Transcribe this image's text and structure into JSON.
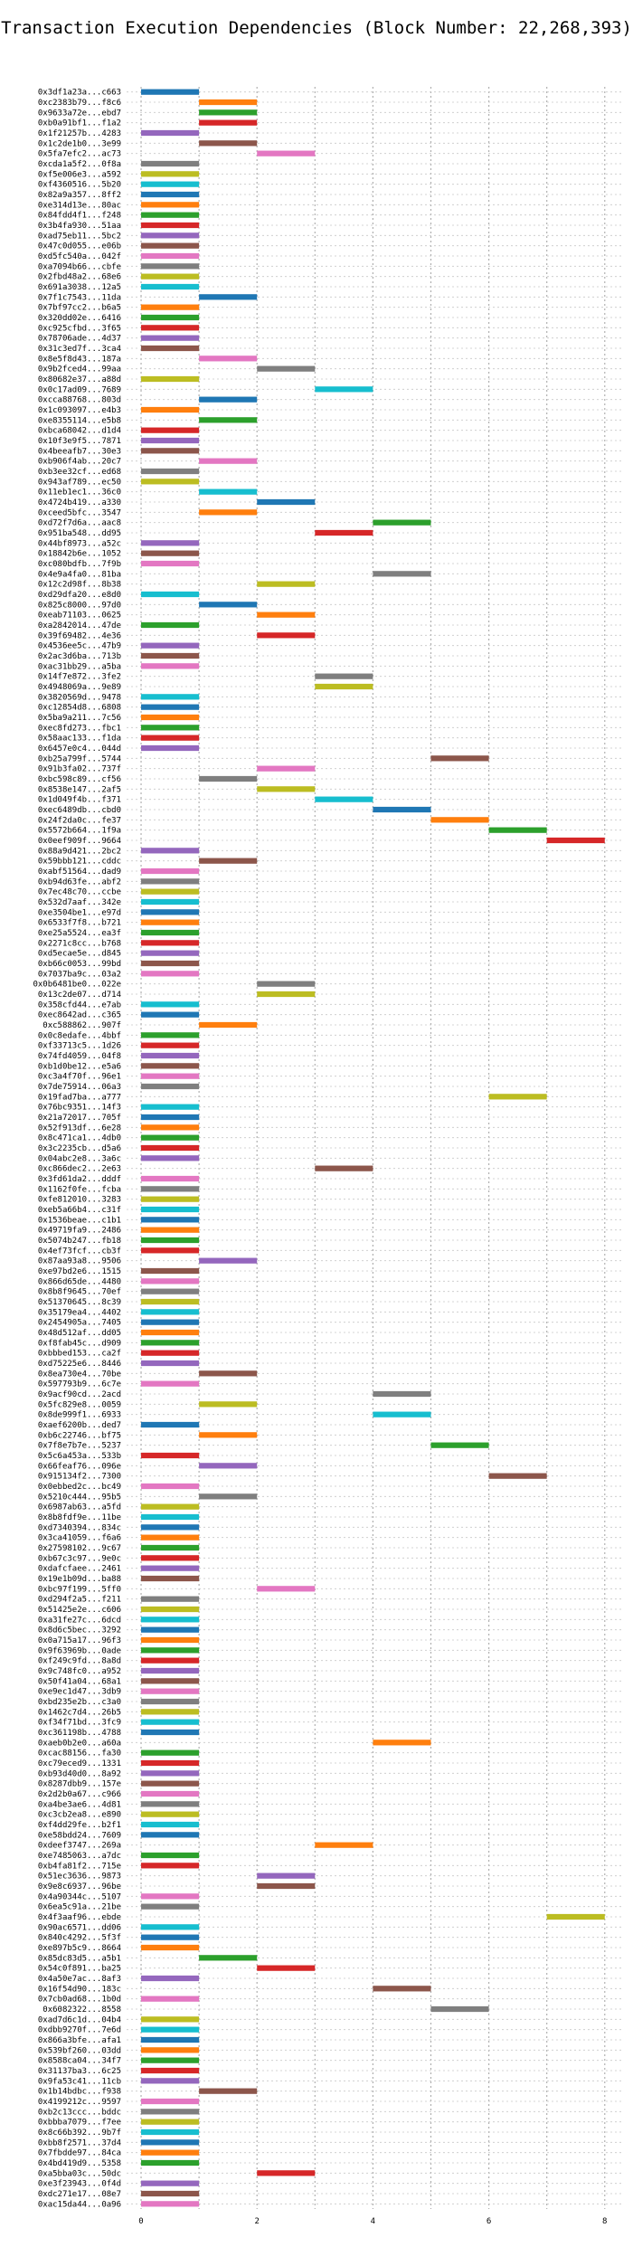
{
  "chart_data": {
    "type": "bar",
    "title": "Transaction Execution Dependencies (Block Number: 22,268,393)",
    "xlabel": "",
    "ylabel": "",
    "xlim": [
      -0.25,
      8.3
    ],
    "x_ticks": [
      0,
      2,
      4,
      6,
      8
    ],
    "grid": true,
    "palette": [
      "#1f77b4",
      "#ff7f0e",
      "#2ca02c",
      "#d62728",
      "#9467bd",
      "#8c564b",
      "#e377c2",
      "#7f7f7f",
      "#bcbd22",
      "#17becf"
    ],
    "transactions": [
      {
        "hash": "0x3df1a23a...c663",
        "start": 0,
        "end": 1
      },
      {
        "hash": "0xc2383b79...f8c6",
        "start": 1,
        "end": 2
      },
      {
        "hash": "0x9633a72e...ebd7",
        "start": 1,
        "end": 2
      },
      {
        "hash": "0xb0a91bf1...f1a2",
        "start": 1,
        "end": 2
      },
      {
        "hash": "0x1f21257b...4283",
        "start": 0,
        "end": 1
      },
      {
        "hash": "0x1c2de1b0...3e99",
        "start": 1,
        "end": 2
      },
      {
        "hash": "0x5fa7efc2...ac73",
        "start": 2,
        "end": 3
      },
      {
        "hash": "0xcda1a5f2...0f8a",
        "start": 0,
        "end": 1
      },
      {
        "hash": "0xf5e006e3...a592",
        "start": 0,
        "end": 1
      },
      {
        "hash": "0xf4360516...5b20",
        "start": 0,
        "end": 1
      },
      {
        "hash": "0x82a9a357...8ff2",
        "start": 0,
        "end": 1
      },
      {
        "hash": "0xe314d13e...80ac",
        "start": 0,
        "end": 1
      },
      {
        "hash": "0x84fdd4f1...f248",
        "start": 0,
        "end": 1
      },
      {
        "hash": "0x3b4fa930...51aa",
        "start": 0,
        "end": 1
      },
      {
        "hash": "0xad75eb11...5bc2",
        "start": 0,
        "end": 1
      },
      {
        "hash": "0x47c0d055...e06b",
        "start": 0,
        "end": 1
      },
      {
        "hash": "0xd5fc540a...042f",
        "start": 0,
        "end": 1
      },
      {
        "hash": "0xa7094b66...cbfe",
        "start": 0,
        "end": 1
      },
      {
        "hash": "0x2fbd48a2...68e6",
        "start": 0,
        "end": 1
      },
      {
        "hash": "0x691a3038...12a5",
        "start": 0,
        "end": 1
      },
      {
        "hash": "0x7f1c7543...11da",
        "start": 1,
        "end": 2
      },
      {
        "hash": "0x7bf97cc2...b6a5",
        "start": 0,
        "end": 1
      },
      {
        "hash": "0x320dd02e...6416",
        "start": 0,
        "end": 1
      },
      {
        "hash": "0xc925cfbd...3f65",
        "start": 0,
        "end": 1
      },
      {
        "hash": "0x78706ade...4d37",
        "start": 0,
        "end": 1
      },
      {
        "hash": "0x31c3ed7f...3ca4",
        "start": 0,
        "end": 1
      },
      {
        "hash": "0x8e5f8d43...187a",
        "start": 1,
        "end": 2
      },
      {
        "hash": "0x9b2fced4...99aa",
        "start": 2,
        "end": 3
      },
      {
        "hash": "0x80682e37...a88d",
        "start": 0,
        "end": 1
      },
      {
        "hash": "0x0c17ad09...7689",
        "start": 3,
        "end": 4
      },
      {
        "hash": "0xcca88768...803d",
        "start": 1,
        "end": 2
      },
      {
        "hash": "0x1c093097...e4b3",
        "start": 0,
        "end": 1
      },
      {
        "hash": "0xe8355114...e5b8",
        "start": 1,
        "end": 2
      },
      {
        "hash": "0xbca68042...d1d4",
        "start": 0,
        "end": 1
      },
      {
        "hash": "0x10f3e9f5...7871",
        "start": 0,
        "end": 1
      },
      {
        "hash": "0x4beeafb7...30e3",
        "start": 0,
        "end": 1
      },
      {
        "hash": "0xb906f4ab...20c7",
        "start": 1,
        "end": 2
      },
      {
        "hash": "0xb3ee32cf...ed68",
        "start": 0,
        "end": 1
      },
      {
        "hash": "0x943af789...ec50",
        "start": 0,
        "end": 1
      },
      {
        "hash": "0x11eb1ec1...36c0",
        "start": 1,
        "end": 2
      },
      {
        "hash": "0x4724b419...a330",
        "start": 2,
        "end": 3
      },
      {
        "hash": "0xceed5bfc...3547",
        "start": 1,
        "end": 2
      },
      {
        "hash": "0xd72f7d6a...aac8",
        "start": 4,
        "end": 5
      },
      {
        "hash": "0x951ba548...dd95",
        "start": 3,
        "end": 4
      },
      {
        "hash": "0x44bf8973...a52c",
        "start": 0,
        "end": 1
      },
      {
        "hash": "0x18842b6e...1052",
        "start": 0,
        "end": 1
      },
      {
        "hash": "0xc080bdfb...7f9b",
        "start": 0,
        "end": 1
      },
      {
        "hash": "0x4e9a4fa0...81ba",
        "start": 4,
        "end": 5
      },
      {
        "hash": "0x12c2d98f...8b38",
        "start": 2,
        "end": 3
      },
      {
        "hash": "0xd29dfa20...e8d0",
        "start": 0,
        "end": 1
      },
      {
        "hash": "0x825c8000...97d0",
        "start": 1,
        "end": 2
      },
      {
        "hash": "0xeab71103...0625",
        "start": 2,
        "end": 3
      },
      {
        "hash": "0xa2842014...47de",
        "start": 0,
        "end": 1
      },
      {
        "hash": "0x39f69482...4e36",
        "start": 2,
        "end": 3
      },
      {
        "hash": "0x4536ee5c...47b9",
        "start": 0,
        "end": 1
      },
      {
        "hash": "0x2ac3d6ba...713b",
        "start": 0,
        "end": 1
      },
      {
        "hash": "0xac31bb29...a5ba",
        "start": 0,
        "end": 1
      },
      {
        "hash": "0x14f7e872...3fe2",
        "start": 3,
        "end": 4
      },
      {
        "hash": "0x4948069a...9e89",
        "start": 3,
        "end": 4
      },
      {
        "hash": "0x3820569d...9478",
        "start": 0,
        "end": 1
      },
      {
        "hash": "0xc12854d8...6808",
        "start": 0,
        "end": 1
      },
      {
        "hash": "0x5ba9a211...7c56",
        "start": 0,
        "end": 1
      },
      {
        "hash": "0xec8fd273...fbc1",
        "start": 0,
        "end": 1
      },
      {
        "hash": "0x58aac133...f1da",
        "start": 0,
        "end": 1
      },
      {
        "hash": "0x6457e0c4...044d",
        "start": 0,
        "end": 1
      },
      {
        "hash": "0xb25a799f...5744",
        "start": 5,
        "end": 6
      },
      {
        "hash": "0x91b3fa02...737f",
        "start": 2,
        "end": 3
      },
      {
        "hash": "0xbc598c89...cf56",
        "start": 1,
        "end": 2
      },
      {
        "hash": "0x8538e147...2af5",
        "start": 2,
        "end": 3
      },
      {
        "hash": "0x1d049f4b...f371",
        "start": 3,
        "end": 4
      },
      {
        "hash": "0xec6489db...cbd0",
        "start": 4,
        "end": 5
      },
      {
        "hash": "0x24f2da0c...fe37",
        "start": 5,
        "end": 6
      },
      {
        "hash": "0x5572b664...1f9a",
        "start": 6,
        "end": 7
      },
      {
        "hash": "0x0eef909f...9664",
        "start": 7,
        "end": 8
      },
      {
        "hash": "0x88a9d421...2bc2",
        "start": 0,
        "end": 1
      },
      {
        "hash": "0x59bbb121...cddc",
        "start": 1,
        "end": 2
      },
      {
        "hash": "0xabf51564...dad9",
        "start": 0,
        "end": 1
      },
      {
        "hash": "0xb94d63fe...abf2",
        "start": 0,
        "end": 1
      },
      {
        "hash": "0x7ec48c70...ccbe",
        "start": 0,
        "end": 1
      },
      {
        "hash": "0x532d7aaf...342e",
        "start": 0,
        "end": 1
      },
      {
        "hash": "0xe3504be1...e97d",
        "start": 0,
        "end": 1
      },
      {
        "hash": "0x6533f7f8...b721",
        "start": 0,
        "end": 1
      },
      {
        "hash": "0xe25a5524...ea3f",
        "start": 0,
        "end": 1
      },
      {
        "hash": "0x2271c8cc...b768",
        "start": 0,
        "end": 1
      },
      {
        "hash": "0xd5ecae5e...d845",
        "start": 0,
        "end": 1
      },
      {
        "hash": "0xb66c0053...99bd",
        "start": 0,
        "end": 1
      },
      {
        "hash": "0x7037ba9c...03a2",
        "start": 0,
        "end": 1
      },
      {
        "hash": "0x0b6481be0...022e",
        "start": 2,
        "end": 3
      },
      {
        "hash": "0x13c2de07...d714",
        "start": 2,
        "end": 3
      },
      {
        "hash": "0x358cfd44...e7ab",
        "start": 0,
        "end": 1
      },
      {
        "hash": "0xec8642ad...c365",
        "start": 0,
        "end": 1
      },
      {
        "hash": "0xc588862...907f",
        "start": 1,
        "end": 2
      },
      {
        "hash": "0x0c8edafe...4bbf",
        "start": 0,
        "end": 1
      },
      {
        "hash": "0xf33713c5...1d26",
        "start": 0,
        "end": 1
      },
      {
        "hash": "0x74fd4059...04f8",
        "start": 0,
        "end": 1
      },
      {
        "hash": "0xb1d0be12...e5a6",
        "start": 0,
        "end": 1
      },
      {
        "hash": "0xc3a4f70f...96e1",
        "start": 0,
        "end": 1
      },
      {
        "hash": "0x7de75914...06a3",
        "start": 0,
        "end": 1
      },
      {
        "hash": "0x19fad7ba...a777",
        "start": 6,
        "end": 7
      },
      {
        "hash": "0x76bc9351...14f3",
        "start": 0,
        "end": 1
      },
      {
        "hash": "0x21a72017...705f",
        "start": 0,
        "end": 1
      },
      {
        "hash": "0x52f913df...6e28",
        "start": 0,
        "end": 1
      },
      {
        "hash": "0x8c471ca1...4db0",
        "start": 0,
        "end": 1
      },
      {
        "hash": "0x3c2235cb...d5a6",
        "start": 0,
        "end": 1
      },
      {
        "hash": "0x04abc2e8...3a6c",
        "start": 0,
        "end": 1
      },
      {
        "hash": "0xc866dec2...2e63",
        "start": 3,
        "end": 4
      },
      {
        "hash": "0x3fd61da2...dddf",
        "start": 0,
        "end": 1
      },
      {
        "hash": "0x1162f0fe...fcba",
        "start": 0,
        "end": 1
      },
      {
        "hash": "0xfe812010...3283",
        "start": 0,
        "end": 1
      },
      {
        "hash": "0xeb5a66b4...c31f",
        "start": 0,
        "end": 1
      },
      {
        "hash": "0x1536beae...c1b1",
        "start": 0,
        "end": 1
      },
      {
        "hash": "0x49719fa9...2486",
        "start": 0,
        "end": 1
      },
      {
        "hash": "0x5074b247...fb18",
        "start": 0,
        "end": 1
      },
      {
        "hash": "0x4ef73fcf...cb3f",
        "start": 0,
        "end": 1
      },
      {
        "hash": "0x87aa93a8...9506",
        "start": 1,
        "end": 2
      },
      {
        "hash": "0xe97bd2e6...1515",
        "start": 0,
        "end": 1
      },
      {
        "hash": "0x866d65de...4480",
        "start": 0,
        "end": 1
      },
      {
        "hash": "0x8b8f9645...70ef",
        "start": 0,
        "end": 1
      },
      {
        "hash": "0x51370645...8c39",
        "start": 0,
        "end": 1
      },
      {
        "hash": "0x35179ea4...4402",
        "start": 0,
        "end": 1
      },
      {
        "hash": "0x2454905a...7405",
        "start": 0,
        "end": 1
      },
      {
        "hash": "0x48d512af...dd05",
        "start": 0,
        "end": 1
      },
      {
        "hash": "0xf8fab45c...d909",
        "start": 0,
        "end": 1
      },
      {
        "hash": "0xbbbed153...ca2f",
        "start": 0,
        "end": 1
      },
      {
        "hash": "0xd75225e6...8446",
        "start": 0,
        "end": 1
      },
      {
        "hash": "0x8ea730e4...70be",
        "start": 1,
        "end": 2
      },
      {
        "hash": "0x597793b9...6c7e",
        "start": 0,
        "end": 1
      },
      {
        "hash": "0x9acf90cd...2acd",
        "start": 4,
        "end": 5
      },
      {
        "hash": "0x5fc829e8...0059",
        "start": 1,
        "end": 2
      },
      {
        "hash": "0x8de999f1...6933",
        "start": 4,
        "end": 5
      },
      {
        "hash": "0xaef6200b...ded7",
        "start": 0,
        "end": 1
      },
      {
        "hash": "0xb6c22746...bf75",
        "start": 1,
        "end": 2
      },
      {
        "hash": "0x7f8e7b7e...5237",
        "start": 5,
        "end": 6
      },
      {
        "hash": "0x5c6a453a...533b",
        "start": 0,
        "end": 1
      },
      {
        "hash": "0x66feaf76...096e",
        "start": 1,
        "end": 2
      },
      {
        "hash": "0x915134f2...7300",
        "start": 6,
        "end": 7
      },
      {
        "hash": "0x0ebbed2c...bc49",
        "start": 0,
        "end": 1
      },
      {
        "hash": "0x5210c444...95b5",
        "start": 1,
        "end": 2
      },
      {
        "hash": "0x6987ab63...a5fd",
        "start": 0,
        "end": 1
      },
      {
        "hash": "0x8b8fdf9e...11be",
        "start": 0,
        "end": 1
      },
      {
        "hash": "0xd7340394...834c",
        "start": 0,
        "end": 1
      },
      {
        "hash": "0x3ca41059...f6a6",
        "start": 0,
        "end": 1
      },
      {
        "hash": "0x27598102...9c67",
        "start": 0,
        "end": 1
      },
      {
        "hash": "0xb67c3c97...9e0c",
        "start": 0,
        "end": 1
      },
      {
        "hash": "0xdafcfaee...2461",
        "start": 0,
        "end": 1
      },
      {
        "hash": "0x19e1b09d...ba88",
        "start": 0,
        "end": 1
      },
      {
        "hash": "0xbc97f199...5ff0",
        "start": 2,
        "end": 3
      },
      {
        "hash": "0xd294f2a5...f211",
        "start": 0,
        "end": 1
      },
      {
        "hash": "0x51425e2e...c606",
        "start": 0,
        "end": 1
      },
      {
        "hash": "0xa31fe27c...6dcd",
        "start": 0,
        "end": 1
      },
      {
        "hash": "0x8d6c5bec...3292",
        "start": 0,
        "end": 1
      },
      {
        "hash": "0x0a715a17...96f3",
        "start": 0,
        "end": 1
      },
      {
        "hash": "0x9f63969b...0ade",
        "start": 0,
        "end": 1
      },
      {
        "hash": "0xf249c9fd...8a8d",
        "start": 0,
        "end": 1
      },
      {
        "hash": "0x9c748fc0...a952",
        "start": 0,
        "end": 1
      },
      {
        "hash": "0x50f41a04...68a1",
        "start": 0,
        "end": 1
      },
      {
        "hash": "0xe9ec1d47...3db9",
        "start": 0,
        "end": 1
      },
      {
        "hash": "0xbd235e2b...c3a0",
        "start": 0,
        "end": 1
      },
      {
        "hash": "0x1462c7d4...26b5",
        "start": 0,
        "end": 1
      },
      {
        "hash": "0xf34f71bd...3fc9",
        "start": 0,
        "end": 1
      },
      {
        "hash": "0xc361198b...4788",
        "start": 0,
        "end": 1
      },
      {
        "hash": "0xaeb0b2e0...a60a",
        "start": 4,
        "end": 5
      },
      {
        "hash": "0xcac88156...fa30",
        "start": 0,
        "end": 1
      },
      {
        "hash": "0xc79eced9...1331",
        "start": 0,
        "end": 1
      },
      {
        "hash": "0xb93d40d0...8a92",
        "start": 0,
        "end": 1
      },
      {
        "hash": "0x8287dbb9...157e",
        "start": 0,
        "end": 1
      },
      {
        "hash": "0x2d2b0a67...c966",
        "start": 0,
        "end": 1
      },
      {
        "hash": "0xa4be3ae6...4d81",
        "start": 0,
        "end": 1
      },
      {
        "hash": "0xc3cb2ea8...e890",
        "start": 0,
        "end": 1
      },
      {
        "hash": "0xf4dd29fe...b2f1",
        "start": 0,
        "end": 1
      },
      {
        "hash": "0xe58bdd24...7609",
        "start": 0,
        "end": 1
      },
      {
        "hash": "0xdeef3747...269a",
        "start": 3,
        "end": 4
      },
      {
        "hash": "0xe7485063...a7dc",
        "start": 0,
        "end": 1
      },
      {
        "hash": "0xb4fa81f2...715e",
        "start": 0,
        "end": 1
      },
      {
        "hash": "0x51ec3636...9873",
        "start": 2,
        "end": 3
      },
      {
        "hash": "0x9e8c6937...96be",
        "start": 2,
        "end": 3
      },
      {
        "hash": "0x4a90344c...5107",
        "start": 0,
        "end": 1
      },
      {
        "hash": "0x6ea5c91a...21be",
        "start": 0,
        "end": 1
      },
      {
        "hash": "0x4f3aaf96...ebde",
        "start": 7,
        "end": 8
      },
      {
        "hash": "0x90ac6571...dd06",
        "start": 0,
        "end": 1
      },
      {
        "hash": "0x840c4292...5f3f",
        "start": 0,
        "end": 1
      },
      {
        "hash": "0xe897b5c9...8664",
        "start": 0,
        "end": 1
      },
      {
        "hash": "0x85dc83d5...a5b1",
        "start": 1,
        "end": 2
      },
      {
        "hash": "0x54c0f891...ba25",
        "start": 2,
        "end": 3
      },
      {
        "hash": "0x4a50e7ac...8af3",
        "start": 0,
        "end": 1
      },
      {
        "hash": "0x16f54d90...183c",
        "start": 4,
        "end": 5
      },
      {
        "hash": "0x7cb0ad68...1b0d",
        "start": 0,
        "end": 1
      },
      {
        "hash": "0x6082322...8558",
        "start": 5,
        "end": 6
      },
      {
        "hash": "0xad7d6c1d...04b4",
        "start": 0,
        "end": 1
      },
      {
        "hash": "0xdbb9270f...7e6d",
        "start": 0,
        "end": 1
      },
      {
        "hash": "0x866a3bfe...afa1",
        "start": 0,
        "end": 1
      },
      {
        "hash": "0x539bf260...03dd",
        "start": 0,
        "end": 1
      },
      {
        "hash": "0x8588ca04...34f7",
        "start": 0,
        "end": 1
      },
      {
        "hash": "0x31137ba3...6c25",
        "start": 0,
        "end": 1
      },
      {
        "hash": "0x9fa53c41...11cb",
        "start": 0,
        "end": 1
      },
      {
        "hash": "0x1b14bdbc...f938",
        "start": 1,
        "end": 2
      },
      {
        "hash": "0x4199212c...9597",
        "start": 0,
        "end": 1
      },
      {
        "hash": "0xb2c13ccc...bddc",
        "start": 0,
        "end": 1
      },
      {
        "hash": "0xbbba7079...f7ee",
        "start": 0,
        "end": 1
      },
      {
        "hash": "0x8c66b392...9b7f",
        "start": 0,
        "end": 1
      },
      {
        "hash": "0xbb8f2571...37d4",
        "start": 0,
        "end": 1
      },
      {
        "hash": "0x7fbdde97...84ca",
        "start": 0,
        "end": 1
      },
      {
        "hash": "0x4bd419d9...5358",
        "start": 0,
        "end": 1
      },
      {
        "hash": "0xa5bba03c...50dc",
        "start": 2,
        "end": 3
      },
      {
        "hash": "0xe3f23943...0f4d",
        "start": 0,
        "end": 1
      },
      {
        "hash": "0xdc271e17...08e7",
        "start": 0,
        "end": 1
      },
      {
        "hash": "0xac15da44...0a96",
        "start": 0,
        "end": 1
      }
    ]
  }
}
